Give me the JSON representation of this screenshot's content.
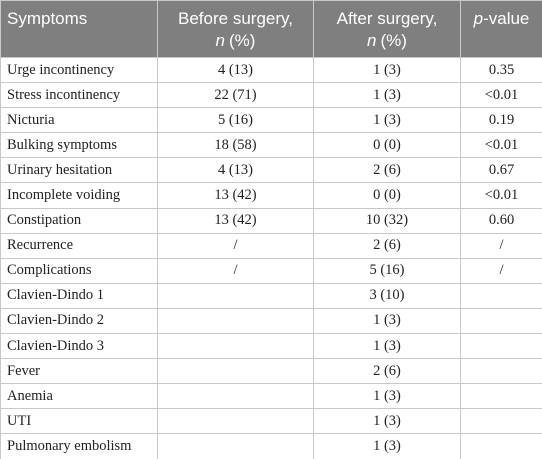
{
  "header": [
    [
      "Symptoms"
    ],
    [
      "Before surgery,",
      "n",
      "(%)"
    ],
    [
      "After surgery,",
      "n",
      "(%)"
    ],
    [
      "p",
      "-value"
    ]
  ],
  "rows": [
    [
      "Urge incontinency",
      "4 (13)",
      "1 (3)",
      "0.35"
    ],
    [
      "Stress incontinency",
      "22 (71)",
      "1 (3)",
      "<0.01"
    ],
    [
      "Nicturia",
      "5 (16)",
      "1 (3)",
      "0.19"
    ],
    [
      "Bulking symptoms",
      "18 (58)",
      "0 (0)",
      "<0.01"
    ],
    [
      "Urinary hesitation",
      "4 (13)",
      "2 (6)",
      "0.67"
    ],
    [
      "Incomplete voiding",
      "13 (42)",
      "0 (0)",
      "<0.01"
    ],
    [
      "Constipation",
      "13 (42)",
      "10 (32)",
      "0.60"
    ],
    [
      "Recurrence",
      "/",
      "2 (6)",
      "/"
    ],
    [
      "Complications",
      "/",
      "5 (16)",
      "/"
    ],
    [
      "Clavien-Dindo 1",
      null,
      "3 (10)",
      null
    ],
    [
      "Clavien-Dindo 2",
      null,
      "1 (3)",
      null
    ],
    [
      "Clavien-Dindo 3",
      null,
      "1 (3)",
      null
    ],
    [
      "Fever",
      null,
      "2 (6)",
      null
    ],
    [
      "Anemia",
      null,
      "1 (3)",
      null
    ],
    [
      "UTI",
      null,
      "1 (3)",
      null
    ],
    [
      "Pulmonary embolism",
      null,
      "1 (3)",
      null
    ]
  ]
}
